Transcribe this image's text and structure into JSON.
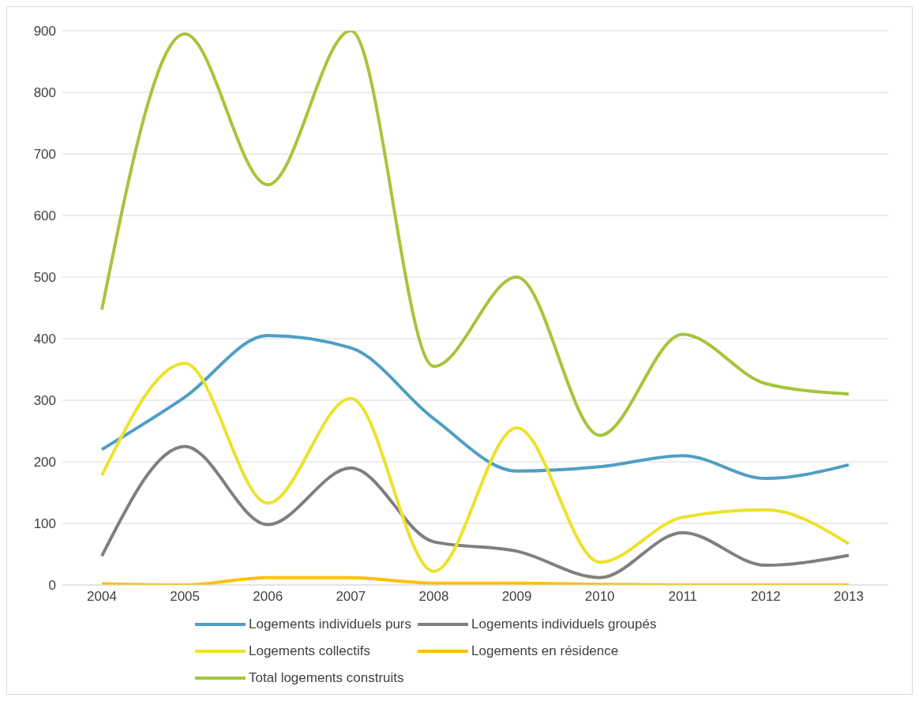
{
  "chart_data": {
    "type": "line",
    "categories": [
      "2004",
      "2005",
      "2006",
      "2007",
      "2008",
      "2009",
      "2010",
      "2011",
      "2012",
      "2013"
    ],
    "series": [
      {
        "name": "Logements individuels purs",
        "color": "#4f9fc4",
        "values": [
          220,
          305,
          405,
          385,
          270,
          185,
          192,
          210,
          173,
          195
        ]
      },
      {
        "name": "Logements individuels groupés",
        "color": "#7f7f7f",
        "values": [
          47,
          225,
          98,
          190,
          70,
          55,
          12,
          85,
          32,
          48
        ]
      },
      {
        "name": "Logements collectifs",
        "color": "#ece22d",
        "values": [
          178,
          360,
          133,
          303,
          22,
          255,
          37,
          110,
          122,
          67
        ]
      },
      {
        "name": "Logements en résidence",
        "color": "#ffc000",
        "values": [
          2,
          0,
          12,
          12,
          3,
          3,
          1,
          0,
          0,
          0
        ]
      },
      {
        "name": "Total logements construits",
        "color": "#a6c53b",
        "values": [
          447,
          895,
          650,
          900,
          355,
          500,
          243,
          407,
          327,
          310
        ]
      }
    ],
    "ylim": [
      0,
      900
    ],
    "yticks": [
      0,
      100,
      200,
      300,
      400,
      500,
      600,
      700,
      800,
      900
    ],
    "grid": "y",
    "legend": "bottom",
    "marker": "none",
    "line_style": "solid"
  }
}
